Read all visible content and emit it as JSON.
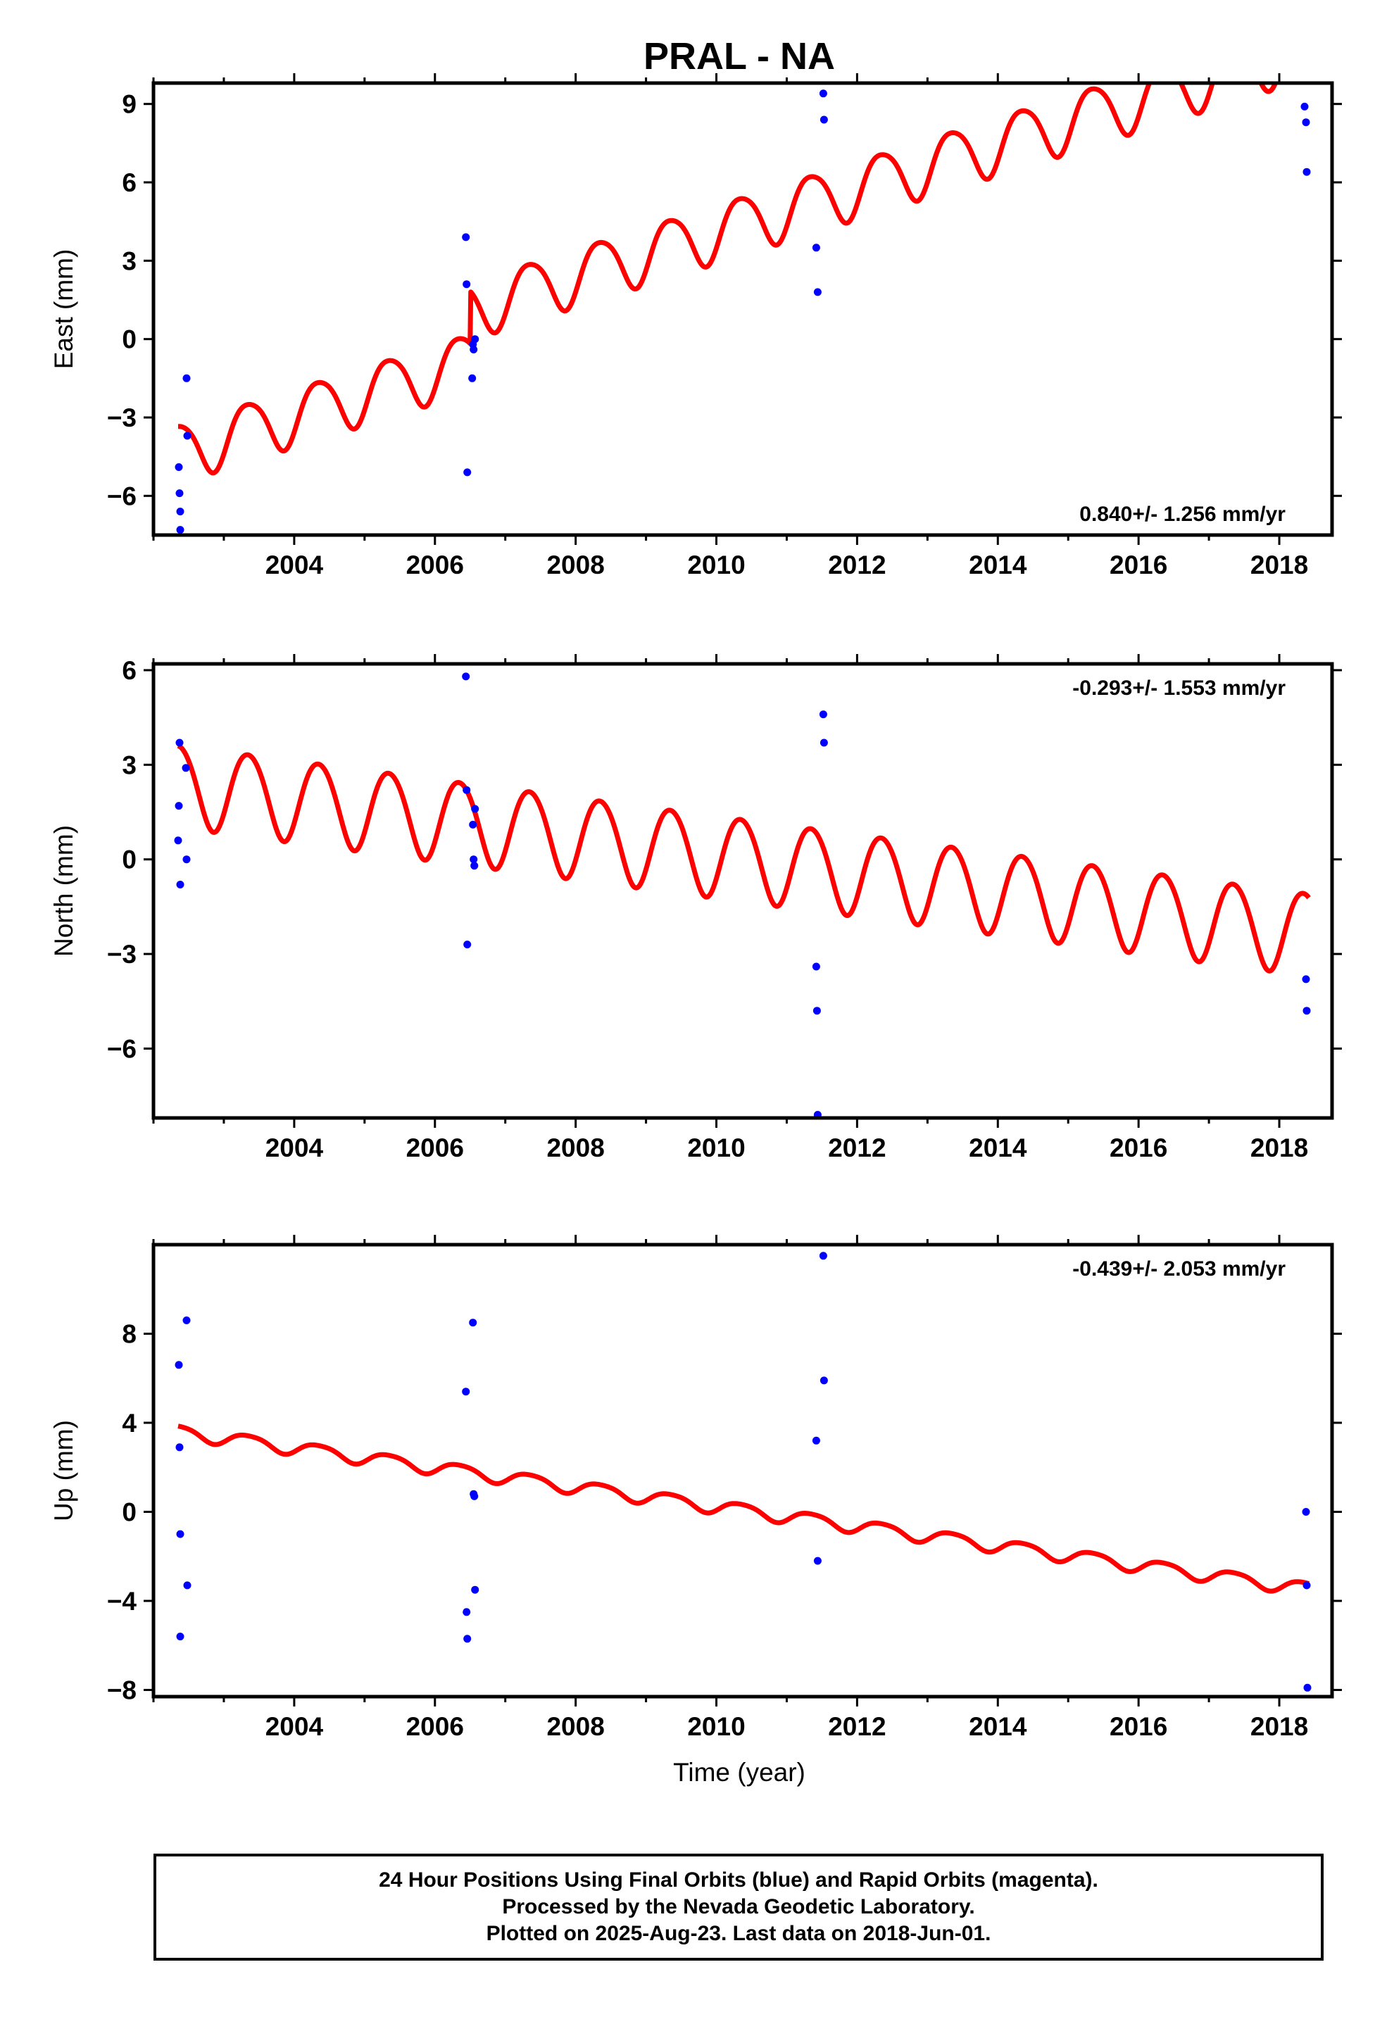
{
  "title": "PRAL - NA",
  "xlabel": "Time (year)",
  "colors": {
    "model": "#ff0000",
    "final_orbits": "#0000ff",
    "frame": "#000000"
  },
  "chart_data": [
    {
      "type": "scatter",
      "ylabel": "East (mm)",
      "rate_label": "0.840+/- 1.256 mm/yr",
      "rate_position": "bottom-right",
      "xlim": [
        2002.0,
        2018.75
      ],
      "ylim": [
        -7.5,
        9.8
      ],
      "x_ticks": [
        2004,
        2006,
        2008,
        2010,
        2012,
        2014,
        2016,
        2018
      ],
      "y_ticks": [
        -6,
        -3,
        0,
        3,
        6,
        9
      ],
      "y_tick_labels": [
        "−6",
        "−3",
        "0",
        "3",
        "6",
        "9"
      ],
      "model": {
        "start_year": 2002.35,
        "end_year": 2018.42,
        "offset_mm": -4.3,
        "rate_mm_per_yr": 0.84,
        "annual_amp_mm": 1.1,
        "semiannual_amp_mm": 0.15,
        "offset_2006_mm": 2.0
      },
      "points": [
        {
          "x": 2002.36,
          "y": -4.9
        },
        {
          "x": 2002.37,
          "y": -5.9
        },
        {
          "x": 2002.38,
          "y": -6.6
        },
        {
          "x": 2002.38,
          "y": -7.3
        },
        {
          "x": 2002.47,
          "y": -1.5
        },
        {
          "x": 2002.48,
          "y": -3.7
        },
        {
          "x": 2006.44,
          "y": 3.9
        },
        {
          "x": 2006.45,
          "y": 2.1
        },
        {
          "x": 2006.46,
          "y": -5.1
        },
        {
          "x": 2006.53,
          "y": -1.5
        },
        {
          "x": 2006.54,
          "y": -0.2
        },
        {
          "x": 2006.55,
          "y": -0.4
        },
        {
          "x": 2006.57,
          "y": 0.0
        },
        {
          "x": 2011.42,
          "y": 3.5
        },
        {
          "x": 2011.44,
          "y": 1.8
        },
        {
          "x": 2011.52,
          "y": 9.4
        },
        {
          "x": 2011.53,
          "y": 8.4
        },
        {
          "x": 2018.36,
          "y": 8.9
        },
        {
          "x": 2018.38,
          "y": 8.3
        },
        {
          "x": 2018.39,
          "y": 6.4
        }
      ]
    },
    {
      "type": "scatter",
      "ylabel": "North (mm)",
      "rate_label": "-0.293+/- 1.553 mm/yr",
      "rate_position": "top-right",
      "xlim": [
        2002.0,
        2018.75
      ],
      "ylim": [
        -8.2,
        6.2
      ],
      "x_ticks": [
        2004,
        2006,
        2008,
        2010,
        2012,
        2014,
        2016,
        2018
      ],
      "y_ticks": [
        -6,
        -3,
        0,
        3,
        6
      ],
      "y_tick_labels": [
        "−6",
        "−3",
        "0",
        "3",
        "6"
      ],
      "model": {
        "start_year": 2002.35,
        "end_year": 2018.42,
        "offset_mm": 2.4,
        "rate_mm_per_yr": -0.293,
        "annual_amp_mm": 1.3,
        "semiannual_amp_mm": 0.1,
        "offset_2006_mm": 0.0
      },
      "points": [
        {
          "x": 2002.35,
          "y": 0.6
        },
        {
          "x": 2002.36,
          "y": 1.7
        },
        {
          "x": 2002.37,
          "y": 3.7
        },
        {
          "x": 2002.38,
          "y": -0.8
        },
        {
          "x": 2002.46,
          "y": 2.9
        },
        {
          "x": 2002.47,
          "y": 0.0
        },
        {
          "x": 2006.44,
          "y": 5.8
        },
        {
          "x": 2006.45,
          "y": 2.2
        },
        {
          "x": 2006.46,
          "y": -2.7
        },
        {
          "x": 2006.54,
          "y": 1.1
        },
        {
          "x": 2006.55,
          "y": 0.0
        },
        {
          "x": 2006.56,
          "y": -0.2
        },
        {
          "x": 2006.57,
          "y": 1.6
        },
        {
          "x": 2011.42,
          "y": -3.4
        },
        {
          "x": 2011.43,
          "y": -4.8
        },
        {
          "x": 2011.44,
          "y": -8.1
        },
        {
          "x": 2011.52,
          "y": 4.6
        },
        {
          "x": 2011.53,
          "y": 3.7
        },
        {
          "x": 2018.38,
          "y": -3.8
        },
        {
          "x": 2018.39,
          "y": -4.8
        }
      ]
    },
    {
      "type": "scatter",
      "ylabel": "Up (mm)",
      "rate_label": "-0.439+/- 2.053 mm/yr",
      "rate_position": "top-right",
      "xlim": [
        2002.0,
        2018.75
      ],
      "ylim": [
        -8.3,
        12.0
      ],
      "x_ticks": [
        2004,
        2006,
        2008,
        2010,
        2012,
        2014,
        2016,
        2018
      ],
      "y_ticks": [
        -8,
        -4,
        0,
        4,
        8
      ],
      "y_tick_labels": [
        "−8",
        "−4",
        "0",
        "4",
        "8"
      ],
      "model": {
        "start_year": 2002.35,
        "end_year": 2018.42,
        "offset_mm": 3.6,
        "rate_mm_per_yr": -0.439,
        "annual_amp_mm": 0.3,
        "semiannual_amp_mm": 0.05,
        "offset_2006_mm": 0.0
      },
      "points": [
        {
          "x": 2002.36,
          "y": 6.6
        },
        {
          "x": 2002.37,
          "y": 2.9
        },
        {
          "x": 2002.38,
          "y": -1.0
        },
        {
          "x": 2002.38,
          "y": -5.6
        },
        {
          "x": 2002.47,
          "y": 8.6
        },
        {
          "x": 2002.48,
          "y": -3.3
        },
        {
          "x": 2006.44,
          "y": 5.4
        },
        {
          "x": 2006.45,
          "y": -4.5
        },
        {
          "x": 2006.46,
          "y": -5.7
        },
        {
          "x": 2006.54,
          "y": 8.5
        },
        {
          "x": 2006.55,
          "y": 0.8
        },
        {
          "x": 2006.56,
          "y": 0.7
        },
        {
          "x": 2006.57,
          "y": -3.5
        },
        {
          "x": 2011.42,
          "y": 3.2
        },
        {
          "x": 2011.44,
          "y": -2.2
        },
        {
          "x": 2011.52,
          "y": 11.5
        },
        {
          "x": 2011.53,
          "y": 5.9
        },
        {
          "x": 2018.38,
          "y": 0.0
        },
        {
          "x": 2018.39,
          "y": -3.3
        },
        {
          "x": 2018.4,
          "y": -7.9
        }
      ]
    }
  ],
  "footer": {
    "line1": "24 Hour Positions Using Final Orbits (blue) and Rapid Orbits (magenta).",
    "line2": "Processed by the Nevada Geodetic Laboratory.",
    "line3": "Plotted on 2025-Aug-23. Last data on 2018-Jun-01."
  }
}
